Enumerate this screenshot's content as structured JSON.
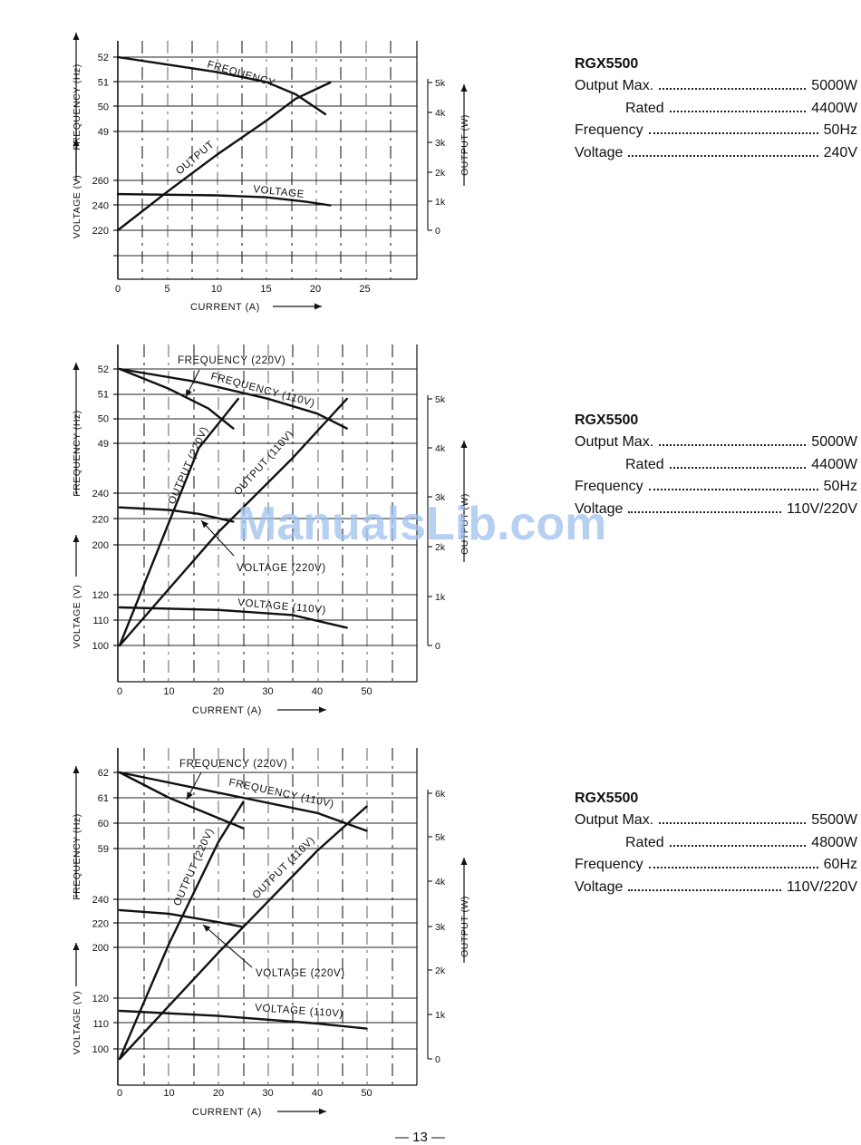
{
  "page_number": "— 13 —",
  "watermark": "ManualsLib.com",
  "specs": [
    {
      "model": "RGX5500",
      "rows": [
        {
          "label": "Output Max.",
          "value": "5000W",
          "indent": false
        },
        {
          "label": "Rated",
          "value": "4400W",
          "indent": true
        },
        {
          "label": "Frequency",
          "value": "50Hz",
          "indent": false
        },
        {
          "label": "Voltage",
          "value": "240V",
          "indent": false
        }
      ]
    },
    {
      "model": "RGX5500",
      "rows": [
        {
          "label": "Output Max.",
          "value": "5000W",
          "indent": false
        },
        {
          "label": "Rated",
          "value": "4400W",
          "indent": true
        },
        {
          "label": "Frequency",
          "value": "50Hz",
          "indent": false
        },
        {
          "label": "Voltage",
          "value": "110V/220V",
          "indent": false
        }
      ]
    },
    {
      "model": "RGX5500",
      "rows": [
        {
          "label": "Output Max.",
          "value": "5500W",
          "indent": false
        },
        {
          "label": "Rated",
          "value": "4800W",
          "indent": true
        },
        {
          "label": "Frequency",
          "value": "60Hz",
          "indent": false
        },
        {
          "label": "Voltage",
          "value": "110V/220V",
          "indent": false
        }
      ]
    }
  ],
  "chart_data": [
    {
      "type": "line",
      "xlabel": "CURRENT (A)",
      "ylabel_freq": "FREQUENCY (Hz)",
      "ylabel_volt": "VOLTAGE (V)",
      "ylabel_out": "OUTPUT (W)",
      "x_ticks": [
        "0",
        "5",
        "10",
        "15",
        "20",
        "25"
      ],
      "freq_ticks": [
        "52",
        "51",
        "50",
        "49"
      ],
      "volt_ticks": [
        "260",
        "240",
        "220"
      ],
      "out_ticks": [
        "5k",
        "4k",
        "3k",
        "2k",
        "1k",
        "0"
      ],
      "series": [
        {
          "name": "FREQUENCY",
          "axis": "freq",
          "points": [
            [
              0,
              52
            ],
            [
              5,
              51.7
            ],
            [
              10,
              51.4
            ],
            [
              15,
              51.0
            ],
            [
              18,
              50.5
            ],
            [
              21,
              49.7
            ]
          ]
        },
        {
          "name": "OUTPUT",
          "axis": "out",
          "points": [
            [
              0,
              0
            ],
            [
              5,
              1300
            ],
            [
              10,
              2550
            ],
            [
              15,
              3700
            ],
            [
              18,
              4450
            ],
            [
              21.5,
              5000
            ]
          ]
        },
        {
          "name": "VOLTAGE",
          "axis": "volt",
          "points": [
            [
              0,
              249
            ],
            [
              10,
              248
            ],
            [
              15,
              246.5
            ],
            [
              19,
              243
            ],
            [
              21.5,
              240
            ]
          ]
        }
      ]
    },
    {
      "type": "line",
      "xlabel": "CURRENT (A)",
      "ylabel_freq": "FREQUENCY (Hz)",
      "ylabel_volt": "VOLTAGE (V)",
      "ylabel_out": "OUTPUT (W)",
      "x_ticks": [
        "0",
        "10",
        "20",
        "30",
        "40",
        "50"
      ],
      "freq_ticks": [
        "52",
        "51",
        "50",
        "49"
      ],
      "volt_ticks": [
        "240",
        "220",
        "200",
        "120",
        "110",
        "100"
      ],
      "out_ticks": [
        "5k",
        "4k",
        "3k",
        "2k",
        "1k",
        "0"
      ],
      "series": [
        {
          "name": "FREQUENCY (220V)",
          "axis": "freq",
          "points": [
            [
              0,
              52
            ],
            [
              10,
              51.2
            ],
            [
              18,
              50.4
            ],
            [
              23,
              49.6
            ]
          ]
        },
        {
          "name": "FREQUENCY (110V)",
          "axis": "freq",
          "points": [
            [
              0,
              52
            ],
            [
              15,
              51.5
            ],
            [
              30,
              50.8
            ],
            [
              40,
              50.2
            ],
            [
              46,
              49.6
            ]
          ]
        },
        {
          "name": "OUTPUT (220V)",
          "axis": "out",
          "points": [
            [
              0,
              0
            ],
            [
              10,
              2500
            ],
            [
              16,
              4000
            ],
            [
              24,
              5000
            ]
          ]
        },
        {
          "name": "OUTPUT (110V)",
          "axis": "out",
          "points": [
            [
              0,
              0
            ],
            [
              20,
              2300
            ],
            [
              35,
              3800
            ],
            [
              46,
              5000
            ]
          ]
        },
        {
          "name": "VOLTAGE (220V)",
          "axis": "volt",
          "points": [
            [
              0,
              229
            ],
            [
              10,
              227
            ],
            [
              16,
              224
            ],
            [
              23,
              218
            ]
          ]
        },
        {
          "name": "VOLTAGE (110V)",
          "axis": "volt",
          "points": [
            [
              0,
              115
            ],
            [
              20,
              114
            ],
            [
              35,
              112
            ],
            [
              46,
              107
            ]
          ]
        }
      ],
      "annotations": [
        "FREQUENCY (220V)",
        "VOLTAGE (220V)"
      ]
    },
    {
      "type": "line",
      "xlabel": "CURRENT (A)",
      "ylabel_freq": "FREQUENCY (Hz)",
      "ylabel_volt": "VOLTAGE (V)",
      "ylabel_out": "OUTPUT (W)",
      "x_ticks": [
        "0",
        "10",
        "20",
        "30",
        "40",
        "50"
      ],
      "freq_ticks": [
        "62",
        "61",
        "60",
        "59"
      ],
      "volt_ticks": [
        "240",
        "220",
        "200",
        "120",
        "110",
        "100"
      ],
      "out_ticks": [
        "6k",
        "5k",
        "4k",
        "3k",
        "2k",
        "1k",
        "0"
      ],
      "series": [
        {
          "name": "FREQUENCY (220V)",
          "axis": "freq",
          "points": [
            [
              0,
              62
            ],
            [
              10,
              61
            ],
            [
              20,
              60.2
            ],
            [
              25,
              59.8
            ]
          ]
        },
        {
          "name": "FREQUENCY (110V)",
          "axis": "freq",
          "points": [
            [
              0,
              62
            ],
            [
              20,
              61.2
            ],
            [
              40,
              60.4
            ],
            [
              50,
              59.7
            ]
          ]
        },
        {
          "name": "OUTPUT (220V)",
          "axis": "out",
          "points": [
            [
              0,
              0
            ],
            [
              10,
              2600
            ],
            [
              20,
              4900
            ],
            [
              25,
              5800
            ]
          ]
        },
        {
          "name": "OUTPUT (110V)",
          "axis": "out",
          "points": [
            [
              0,
              0
            ],
            [
              20,
              2400
            ],
            [
              40,
              4700
            ],
            [
              50,
              5700
            ]
          ]
        },
        {
          "name": "VOLTAGE (220V)",
          "axis": "volt",
          "points": [
            [
              0,
              231
            ],
            [
              10,
              228
            ],
            [
              20,
              221
            ],
            [
              25,
              217
            ]
          ]
        },
        {
          "name": "VOLTAGE (110V)",
          "axis": "volt",
          "points": [
            [
              0,
              115
            ],
            [
              20,
              113
            ],
            [
              40,
              110
            ],
            [
              50,
              108
            ]
          ]
        }
      ],
      "annotations": [
        "FREQUENCY (220V)",
        "VOLTAGE (220V)"
      ]
    }
  ]
}
